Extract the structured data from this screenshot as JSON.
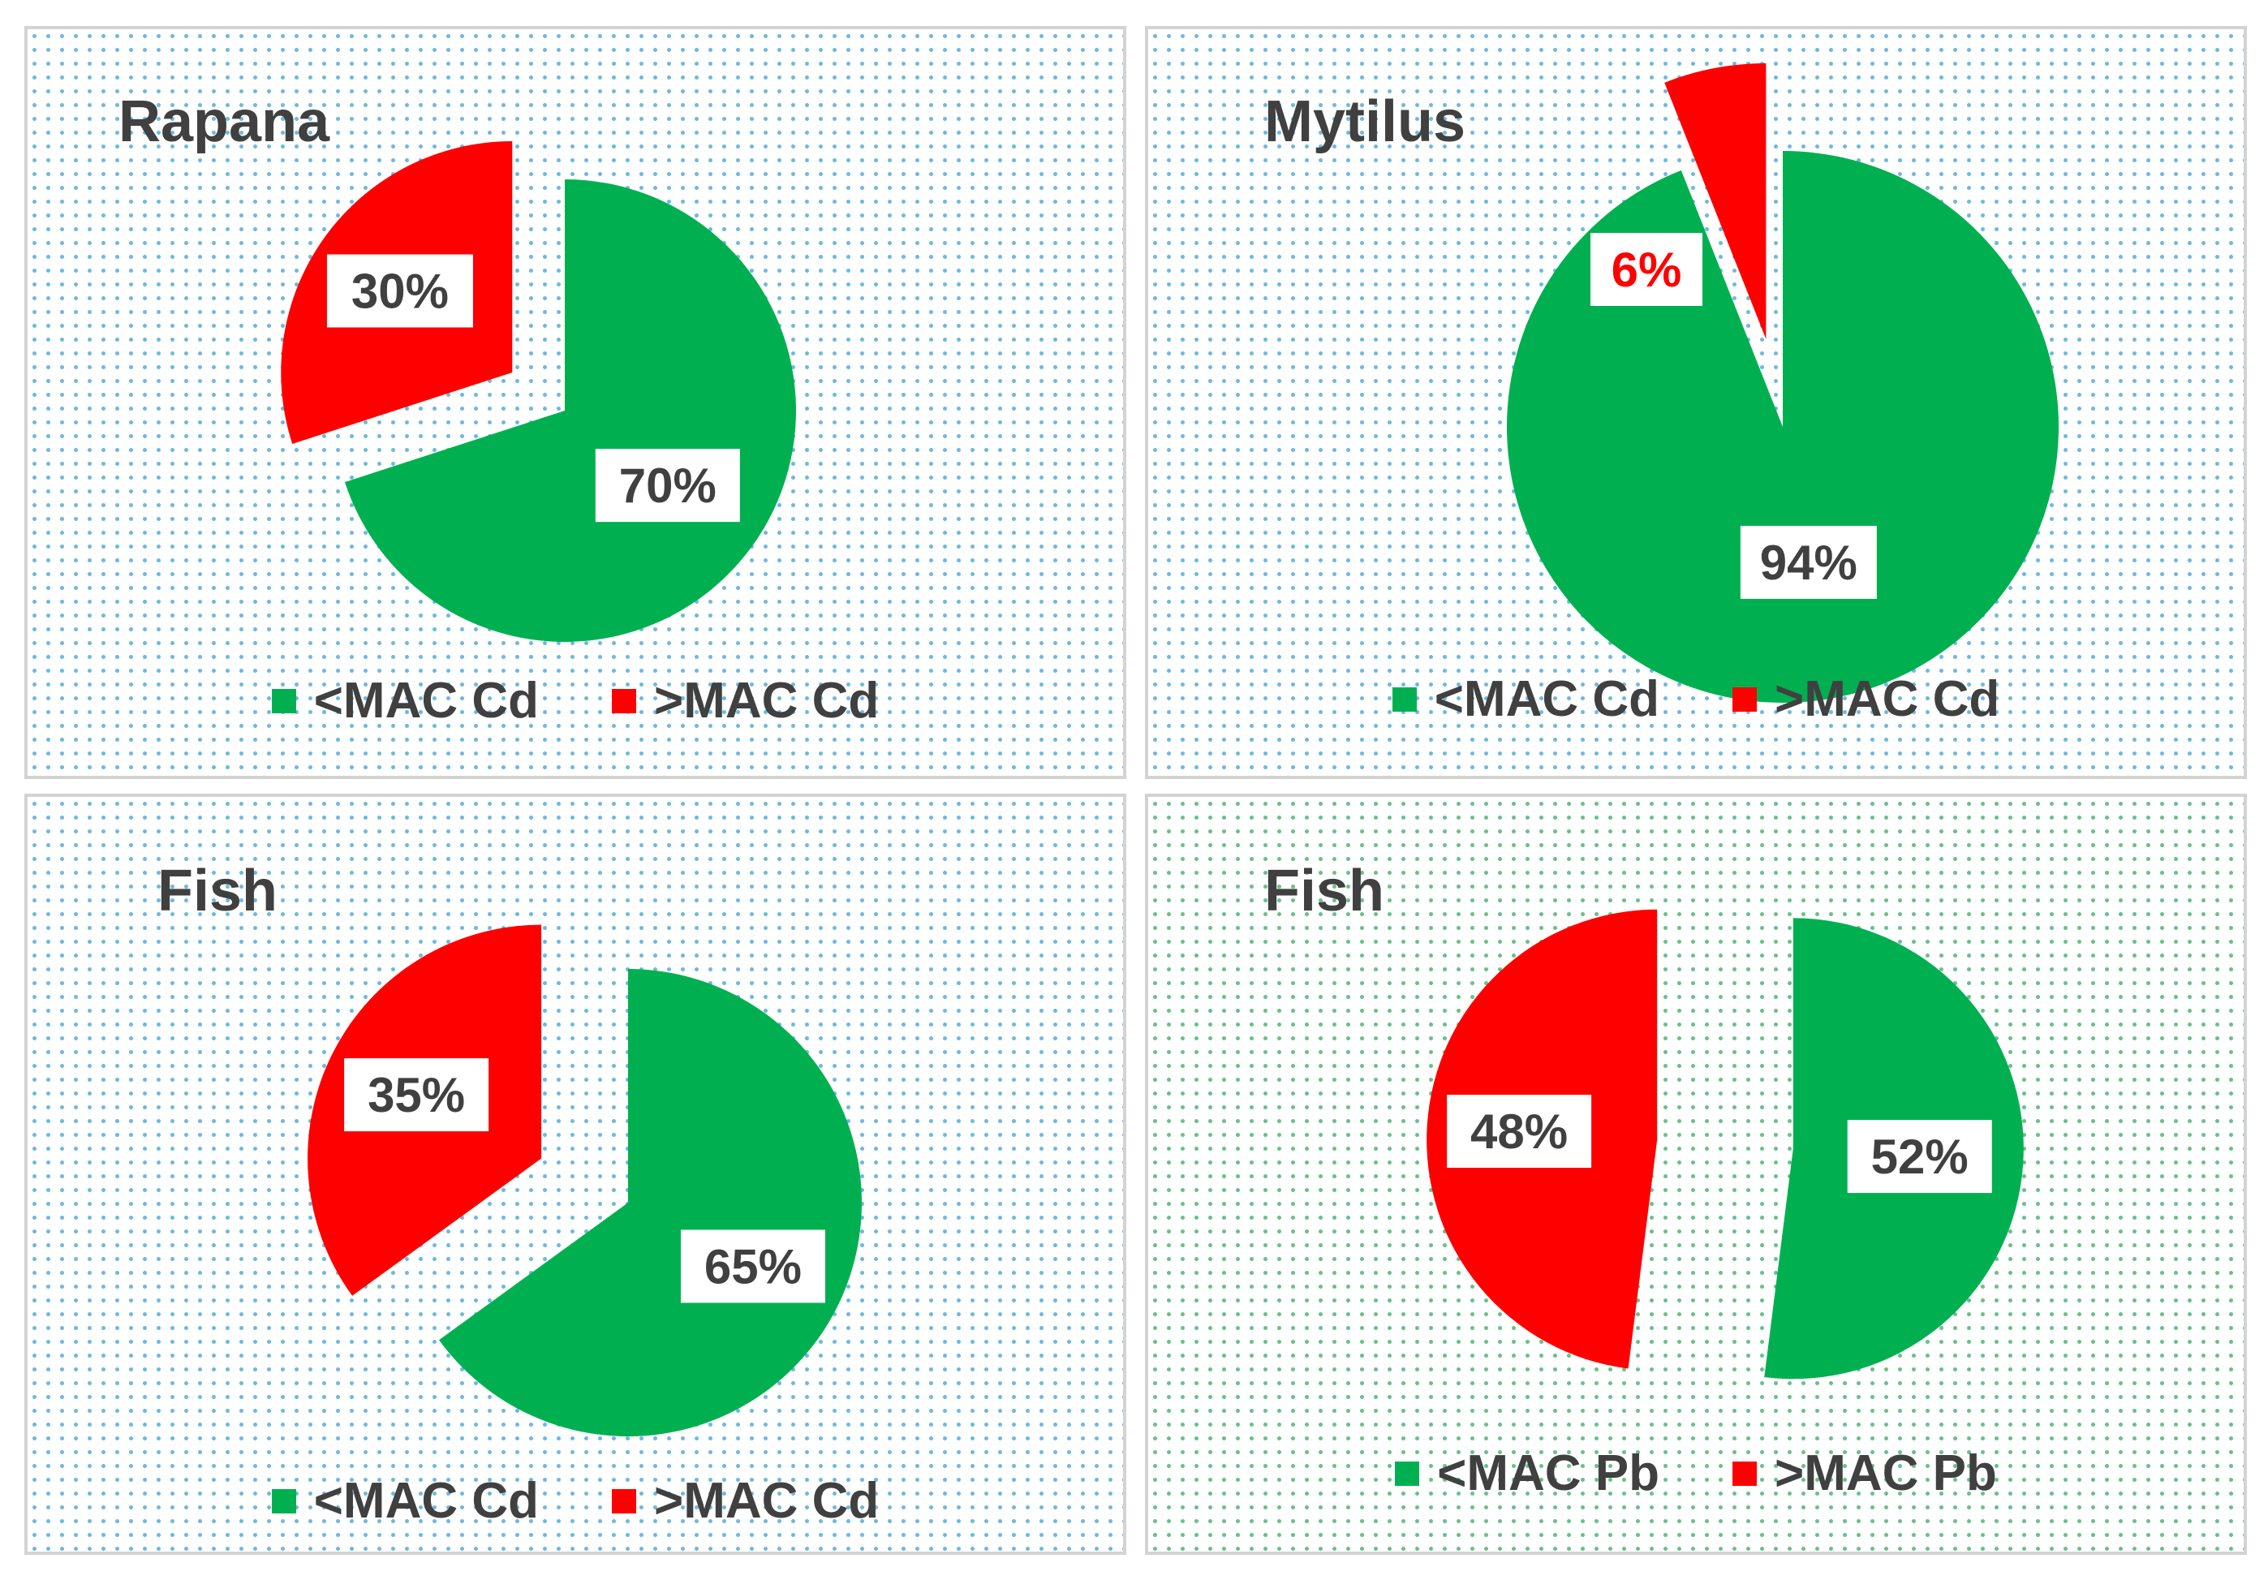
{
  "colors": {
    "below": "#00b050",
    "above": "#ff0000",
    "label_text": "#404040"
  },
  "chart_data": [
    {
      "type": "pie",
      "title": "Rapana",
      "slices": [
        {
          "name": "<MAC Cd",
          "value": 70,
          "label": "70%",
          "color": "#00b050",
          "exploded": false
        },
        {
          "name": ">MAC Cd",
          "value": 30,
          "label": "30%",
          "color": "#ff0000",
          "exploded": true
        }
      ]
    },
    {
      "type": "pie",
      "title": "Mytilus",
      "slices": [
        {
          "name": "<MAC Cd",
          "value": 94,
          "label": "94%",
          "color": "#00b050",
          "exploded": false
        },
        {
          "name": ">MAC Cd",
          "value": 6,
          "label": "6%",
          "color": "#ff0000",
          "exploded": true
        }
      ]
    },
    {
      "type": "pie",
      "title": "Fish",
      "slices": [
        {
          "name": "<MAC Cd",
          "value": 65,
          "label": "65%",
          "color": "#00b050",
          "exploded": false
        },
        {
          "name": ">MAC Cd",
          "value": 35,
          "label": "35%",
          "color": "#ff0000",
          "exploded": true
        }
      ]
    },
    {
      "type": "pie",
      "title": "Fish",
      "slices": [
        {
          "name": "<MAC Pb",
          "value": 52,
          "label": "52%",
          "color": "#00b050",
          "exploded": true
        },
        {
          "name": ">MAC Pb",
          "value": 48,
          "label": "48%",
          "color": "#ff0000",
          "exploded": true
        }
      ]
    }
  ]
}
